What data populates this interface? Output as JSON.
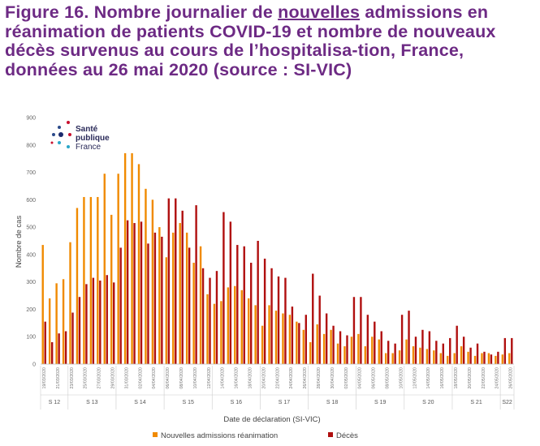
{
  "title": {
    "part1": "Figure 16. Nombre journalier de ",
    "underlined": "nouvelles",
    "part2": " admissions en réanimation de patients COVID-19 et nombre de nouveaux décès survenus au cours de l’hospitalisa-tion, France,  données au 26 mai 2020 (source : SI-VIC)"
  },
  "logo": {
    "line1": "Santé",
    "line2": "publique",
    "line3": "France"
  },
  "colors": {
    "admissions": "#f08a00",
    "deces": "#b00f0f",
    "title": "#6d2a84"
  },
  "chart_data": {
    "type": "bar",
    "title": "Nombre journalier de nouvelles admissions en réanimation et nouveaux décès",
    "xlabel": "Date de déclaration (SI-VIC)",
    "ylabel": "Nombre de cas",
    "ylim": [
      0,
      900
    ],
    "yticks": [
      "0",
      "100",
      "200",
      "300",
      "400",
      "500",
      "600",
      "700",
      "800",
      "900"
    ],
    "categories": [
      "19/03/2020",
      "20/03/2020",
      "21/03/2020",
      "22/03/2020",
      "23/03/2020",
      "24/03/2020",
      "25/03/2020",
      "26/03/2020",
      "27/03/2020",
      "28/03/2020",
      "29/03/2020",
      "30/03/2020",
      "31/03/2020",
      "01/04/2020",
      "02/04/2020",
      "03/04/2020",
      "04/04/2020",
      "05/04/2020",
      "06/04/2020",
      "07/04/2020",
      "08/04/2020",
      "09/04/2020",
      "10/04/2020",
      "11/04/2020",
      "12/04/2020",
      "13/04/2020",
      "14/04/2020",
      "15/04/2020",
      "16/04/2020",
      "17/04/2020",
      "18/04/2020",
      "19/04/2020",
      "20/04/2020",
      "21/04/2020",
      "22/04/2020",
      "23/04/2020",
      "24/04/2020",
      "25/04/2020",
      "26/04/2020",
      "27/04/2020",
      "28/04/2020",
      "29/04/2020",
      "30/04/2020",
      "01/05/2020",
      "02/05/2020",
      "03/05/2020",
      "04/05/2020",
      "05/05/2020",
      "06/05/2020",
      "07/05/2020",
      "08/05/2020",
      "09/05/2020",
      "10/05/2020",
      "11/05/2020",
      "12/05/2020",
      "13/05/2020",
      "14/05/2020",
      "15/05/2020",
      "16/05/2020",
      "17/05/2020",
      "18/05/2020",
      "19/05/2020",
      "20/05/2020",
      "21/05/2020",
      "22/05/2020",
      "23/05/2020",
      "24/05/2020",
      "25/05/2020",
      "26/05/2020"
    ],
    "date_labels": [
      "19/03/2020",
      "21/03/2020",
      "23/03/2020",
      "25/03/2020",
      "27/03/2020",
      "29/03/2020",
      "31/03/2020",
      "02/04/2020",
      "04/04/2020",
      "06/04/2020",
      "08/04/2020",
      "10/04/2020",
      "12/04/2020",
      "14/04/2020",
      "16/04/2020",
      "18/04/2020",
      "20/04/2020",
      "22/04/2020",
      "24/04/2020",
      "26/04/2020",
      "28/04/2020",
      "30/04/2020",
      "02/05/2020",
      "04/05/2020",
      "06/05/2020",
      "08/05/2020",
      "10/05/2020",
      "12/05/2020",
      "14/05/2020",
      "16/05/2020",
      "18/05/2020",
      "20/05/2020",
      "22/05/2020",
      "24/05/2020",
      "26/05/2020"
    ],
    "series": [
      {
        "name": "Nouvelles admissions réanimation",
        "color": "#f08a00",
        "values": [
          435,
          240,
          295,
          310,
          445,
          570,
          610,
          610,
          610,
          695,
          545,
          695,
          770,
          770,
          730,
          640,
          600,
          500,
          390,
          480,
          515,
          480,
          370,
          430,
          255,
          220,
          230,
          280,
          285,
          270,
          240,
          215,
          140,
          215,
          195,
          185,
          180,
          155,
          125,
          80,
          145,
          110,
          125,
          75,
          65,
          100,
          110,
          65,
          100,
          90,
          40,
          40,
          50,
          90,
          65,
          60,
          55,
          50,
          40,
          30,
          40,
          65,
          45,
          30,
          40,
          40,
          30,
          35,
          40
        ]
      },
      {
        "name": "Décès",
        "color": "#b00f0f",
        "values": [
          155,
          80,
          112,
          120,
          188,
          245,
          292,
          315,
          305,
          325,
          298,
          425,
          525,
          515,
          520,
          440,
          480,
          465,
          605,
          605,
          560,
          425,
          580,
          350,
          315,
          340,
          555,
          520,
          435,
          430,
          370,
          450,
          385,
          350,
          320,
          315,
          210,
          150,
          180,
          330,
          250,
          185,
          140,
          120,
          105,
          245,
          245,
          180,
          155,
          120,
          85,
          75,
          180,
          195,
          100,
          125,
          120,
          85,
          75,
          95,
          140,
          100,
          60,
          75,
          45,
          35,
          45,
          95,
          95
        ]
      }
    ],
    "weeks": [
      {
        "label": "S 12",
        "start": 0,
        "end": 4
      },
      {
        "label": "S 13",
        "start": 4,
        "end": 11
      },
      {
        "label": "S 14",
        "start": 11,
        "end": 18
      },
      {
        "label": "S 15",
        "start": 18,
        "end": 25
      },
      {
        "label": "S 16",
        "start": 25,
        "end": 32
      },
      {
        "label": "S 17",
        "start": 32,
        "end": 39
      },
      {
        "label": "S 18",
        "start": 39,
        "end": 46
      },
      {
        "label": "S 19",
        "start": 46,
        "end": 53
      },
      {
        "label": "S 20",
        "start": 53,
        "end": 60
      },
      {
        "label": "S 21",
        "start": 60,
        "end": 67
      },
      {
        "label": "S22",
        "start": 67,
        "end": 69
      }
    ],
    "legend": [
      "Nouvelles admissions réanimation",
      "Décès"
    ],
    "legend_position": "bottom"
  }
}
